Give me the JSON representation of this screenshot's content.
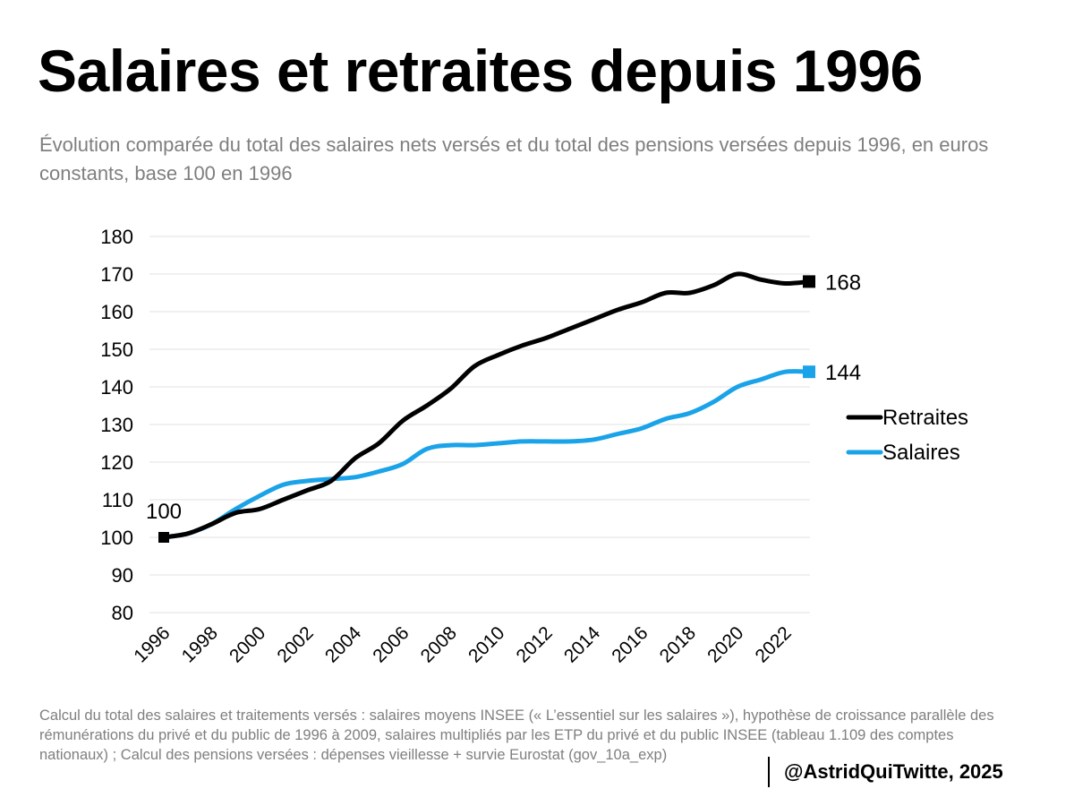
{
  "page": {
    "title": "Salaires et retraites depuis 1996",
    "subtitle": "Évolution comparée du total des salaires nets versés et du total des pensions versées depuis 1996, en euros constants, base 100 en 1996",
    "footnote": "Calcul du total des salaires et traitements versés : salaires moyens INSEE (« L’essentiel sur les salaires »), hypothèse de croissance parallèle des rémunérations du privé et du public de 1996 à 2009, salaires multipliés par les ETP du privé et du public INSEE (tableau 1.109 des comptes nationaux) ; Calcul des pensions versées : dépenses vieillesse + survie Eurostat (gov_10a_exp)",
    "credit": "@AstridQuiTwitte, 2025"
  },
  "chart_data": {
    "type": "line",
    "title": "Salaires et retraites depuis 1996",
    "xlabel": "",
    "ylabel": "",
    "ylim": [
      80,
      180
    ],
    "yticks": [
      80,
      90,
      100,
      110,
      120,
      130,
      140,
      150,
      160,
      170,
      180
    ],
    "xlim": [
      1996,
      2023
    ],
    "xtick_labels": [
      "1996",
      "1998",
      "2000",
      "2002",
      "2004",
      "2006",
      "2008",
      "2010",
      "2012",
      "2014",
      "2016",
      "2018",
      "2020",
      "2022"
    ],
    "grid": true,
    "legend_position": "right",
    "x": [
      1996,
      1997,
      1998,
      1999,
      2000,
      2001,
      2002,
      2003,
      2004,
      2005,
      2006,
      2007,
      2008,
      2009,
      2010,
      2011,
      2012,
      2013,
      2014,
      2015,
      2016,
      2017,
      2018,
      2019,
      2020,
      2021,
      2022,
      2023
    ],
    "series": [
      {
        "name": "Retraites",
        "color": "#000000",
        "values": [
          100,
          101,
          103.5,
          106.5,
          107.5,
          110,
          112.5,
          115,
          121,
          125,
          131,
          135,
          139.5,
          145.5,
          148.5,
          151,
          153,
          155.5,
          158,
          160.5,
          162.5,
          165,
          165,
          167,
          170,
          168.5,
          167.5,
          168
        ],
        "end_label": "168"
      },
      {
        "name": "Salaires",
        "color": "#1aa3e8",
        "values": [
          100,
          101,
          103.5,
          107.5,
          111,
          114,
          115,
          115.5,
          116,
          117.5,
          119.5,
          123.5,
          124.5,
          124.5,
          125,
          125.5,
          125.5,
          125.5,
          126,
          127.5,
          129,
          131.5,
          133,
          136,
          140,
          142,
          144,
          144
        ],
        "end_label": "144"
      }
    ],
    "start_label": "100"
  }
}
